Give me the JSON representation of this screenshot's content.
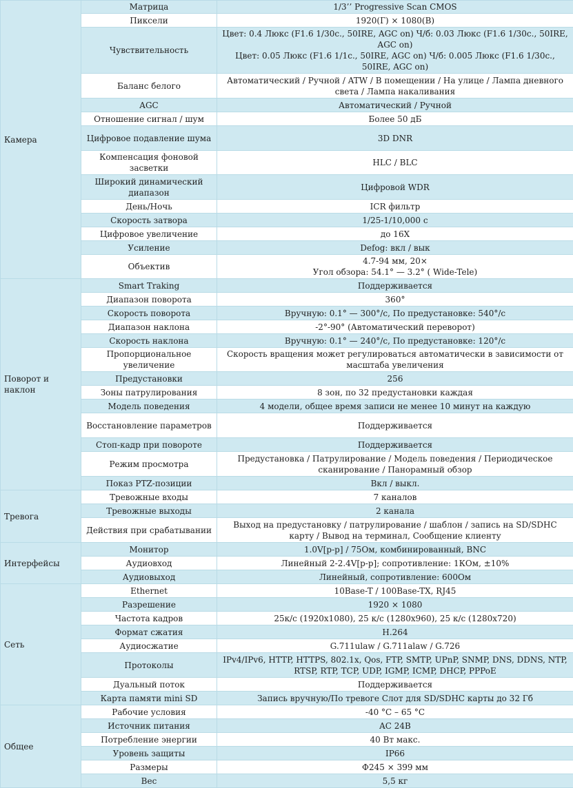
{
  "spec_table": {
    "groups": [
      {
        "name": "Камера",
        "rows": [
          {
            "label": "Матрица",
            "value": "1/3’’ Progressive Scan CMOS",
            "h": 18
          },
          {
            "label": "Пиксели",
            "value": "1920(Г) × 1080(В)",
            "h": 20
          },
          {
            "label": "Чувствительность",
            "value": "Цвет: 0.4 Люкс (F1.6 1/30с., 50IRE, AGC on) Ч/б: 0.03 Люкс (F1.6 1/30с., 50IRE, AGC on)\nЦвет: 0.05 Люкс (F1.6 1/1с., 50IRE, AGC on) Ч/б: 0.005 Люкс (F1.6 1/30с., 50IRE, AGC on)",
            "h": 66
          },
          {
            "label": "Баланс белого",
            "value": "Автоматический / Ручной / ATW / В помещении / На улице / Лампа дневного света / Лампа накаливания",
            "h": 36
          },
          {
            "label": "AGC",
            "value": "Автоматический / Ручной",
            "h": 20
          },
          {
            "label": "Отношение сигнал / шум",
            "value": "Более 50 дБ",
            "h": 20
          },
          {
            "label": "Цифровое подавление шума",
            "value": "3D DNR",
            "h": 36
          },
          {
            "label": "Компенсация фоновой засветки",
            "value": "HLC / BLC",
            "h": 34
          },
          {
            "label": "Широкий динамический диапазон",
            "value": "Цифровой WDR",
            "h": 36
          },
          {
            "label": "День/Ночь",
            "value": "ICR фильтр",
            "h": 20
          },
          {
            "label": "Скорость затвора",
            "value": "1/25-1/10,000 с",
            "h": 20
          },
          {
            "label": "Цифровое увеличение",
            "value": "до 16X",
            "h": 20
          },
          {
            "label": "Усиление",
            "value": "Defog: вкл / вык",
            "h": 20
          },
          {
            "label": "Объектив",
            "value": "4.7-94 мм, 20×\nУгол обзора: 54.1° — 3.2° ( Wide-Tele)",
            "h": 34
          }
        ]
      },
      {
        "name": "Поворот и наклон",
        "rows": [
          {
            "label": "Smart Traking",
            "value": "Поддерживается",
            "h": 20
          },
          {
            "label": "Диапазон поворота",
            "value": "360°",
            "h": 20
          },
          {
            "label": "Скорость поворота",
            "value": "Вручную: 0.1° — 300°/с, По предустановке: 540°/с",
            "h": 20
          },
          {
            "label": "Диапазон наклона",
            "value": "-2°-90° (Автоматический переворот)",
            "h": 20
          },
          {
            "label": "Скорость наклона",
            "value": "Вручную: 0.1° — 240°/с, По предустановке: 120°/с",
            "h": 20
          },
          {
            "label": "Пропорциональное увеличение",
            "value": "Скорость вращения может регулироваться автоматически в зависимости от масштаба увеличения",
            "h": 34
          },
          {
            "label": "Предустановки",
            "value": "256",
            "h": 20
          },
          {
            "label": "Зоны патрулирования",
            "value": "8 зон, по 32 предустановки каждая",
            "h": 20
          },
          {
            "label": "Модель поведения",
            "value": "4 модели, общее время записи не менее 10 минут на каждую",
            "h": 20
          },
          {
            "label": "Восстановление параметров",
            "value": "Поддерживается",
            "h": 36
          },
          {
            "label": "Стоп-кадр при повороте",
            "value": "Поддерживается",
            "h": 20
          },
          {
            "label": "Режим просмотра",
            "value": "Предустановка / Патрулирование / Модель поведения / Периодическое сканирование / Панорамный обзор",
            "h": 36
          },
          {
            "label": "Показ PTZ-позиции",
            "value": "Вкл / выкл.",
            "h": 20
          }
        ]
      },
      {
        "name": "Тревога",
        "rows": [
          {
            "label": "Тревожные входы",
            "value": "7 каналов",
            "h": 20
          },
          {
            "label": "Тревожные выходы",
            "value": "2 канала",
            "h": 20
          },
          {
            "label": "Действия при срабатывании",
            "value": "Выход на предустановку / патрулирование / шаблон / запись на SD/SDHC карту / Вывод на терминал, Сообщение клиенту",
            "h": 36
          }
        ]
      },
      {
        "name": "Интерфейсы",
        "rows": [
          {
            "label": "Монитор",
            "value": "1.0V[p-p] / 75Ом, комбинированный, BNC",
            "h": 20
          },
          {
            "label": "Аудиовход",
            "value": "Линейный 2-2.4V[p-p]; сопротивление: 1КОм, ±10%",
            "h": 20
          },
          {
            "label": "Аудиовыход",
            "value": "Линейный, сопротивление: 600Ом",
            "h": 20
          }
        ]
      },
      {
        "name": "Сеть",
        "rows": [
          {
            "label": "Ethernet",
            "value": "10Base-T / 100Base-TX, RJ45",
            "h": 20
          },
          {
            "label": "Разрешение",
            "value": "1920 × 1080",
            "h": 20
          },
          {
            "label": "Частота кадров",
            "value": "25к/с (1920x1080), 25 к/с (1280x960), 25 к/с (1280x720)",
            "h": 20
          },
          {
            "label": "Формат сжатия",
            "value": "H.264",
            "h": 20
          },
          {
            "label": "Аудиосжатие",
            "value": "G.711ulaw / G.711alaw / G.726",
            "h": 20
          },
          {
            "label": "Протоколы",
            "value": "IPv4/IPv6, HTTP, HTTPS, 802.1x, Qos, FTP, SMTP, UPnP, SNMP, DNS, DDNS, NTP, RTSP, RTP, TCP, UDP, IGMP, ICMP, DHCP, PPPoE",
            "h": 36
          },
          {
            "label": "Дуальный поток",
            "value": "Поддерживается",
            "h": 20
          },
          {
            "label": "Карта памяти mini SD",
            "value": "Запись вручную/По тревоге Слот для SD/SDHC карты до 32 Гб",
            "h": 20
          }
        ]
      },
      {
        "name": "Общее",
        "rows": [
          {
            "label": "Рабочие условия",
            "value": "-40 °C – 65 °C",
            "h": 20
          },
          {
            "label": "Источник питания",
            "value": "AC 24В",
            "h": 20
          },
          {
            "label": "Потребление энергии",
            "value": "40 Вт макс.",
            "h": 20
          },
          {
            "label": "Уровень защиты",
            "value": "IP66",
            "h": 20
          },
          {
            "label": "Размеры",
            "value": "Ф245 × 399 мм",
            "h": 20
          },
          {
            "label": "Вес",
            "value": "5,5 кг",
            "h": 20
          }
        ]
      }
    ]
  }
}
